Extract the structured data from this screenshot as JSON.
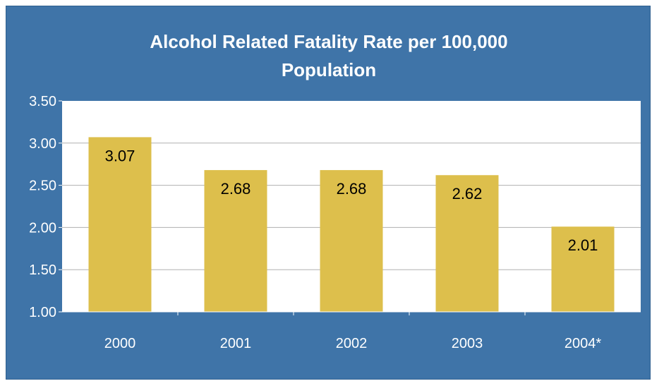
{
  "chart_data": {
    "type": "bar",
    "title_lines": [
      "Alcohol Related Fatality Rate per 100,000",
      "Population"
    ],
    "categories": [
      "2000",
      "2001",
      "2002",
      "2003",
      "2004*"
    ],
    "values": [
      3.07,
      2.68,
      2.68,
      2.62,
      2.01
    ],
    "value_labels": [
      "3.07",
      "2.68",
      "2.68",
      "2.62",
      "2.01"
    ],
    "ylim": [
      1.0,
      3.5
    ],
    "yticks": [
      "1.00",
      "1.50",
      "2.00",
      "2.50",
      "3.00",
      "3.50"
    ],
    "grid": true,
    "legend": "none",
    "colors": {
      "background": "#3f74a8",
      "plot_area": "#ffffff",
      "bar": "#ddbf4c",
      "text": "#ffffff",
      "value_text": "#000000",
      "gridline": "#b0b0b0"
    }
  }
}
